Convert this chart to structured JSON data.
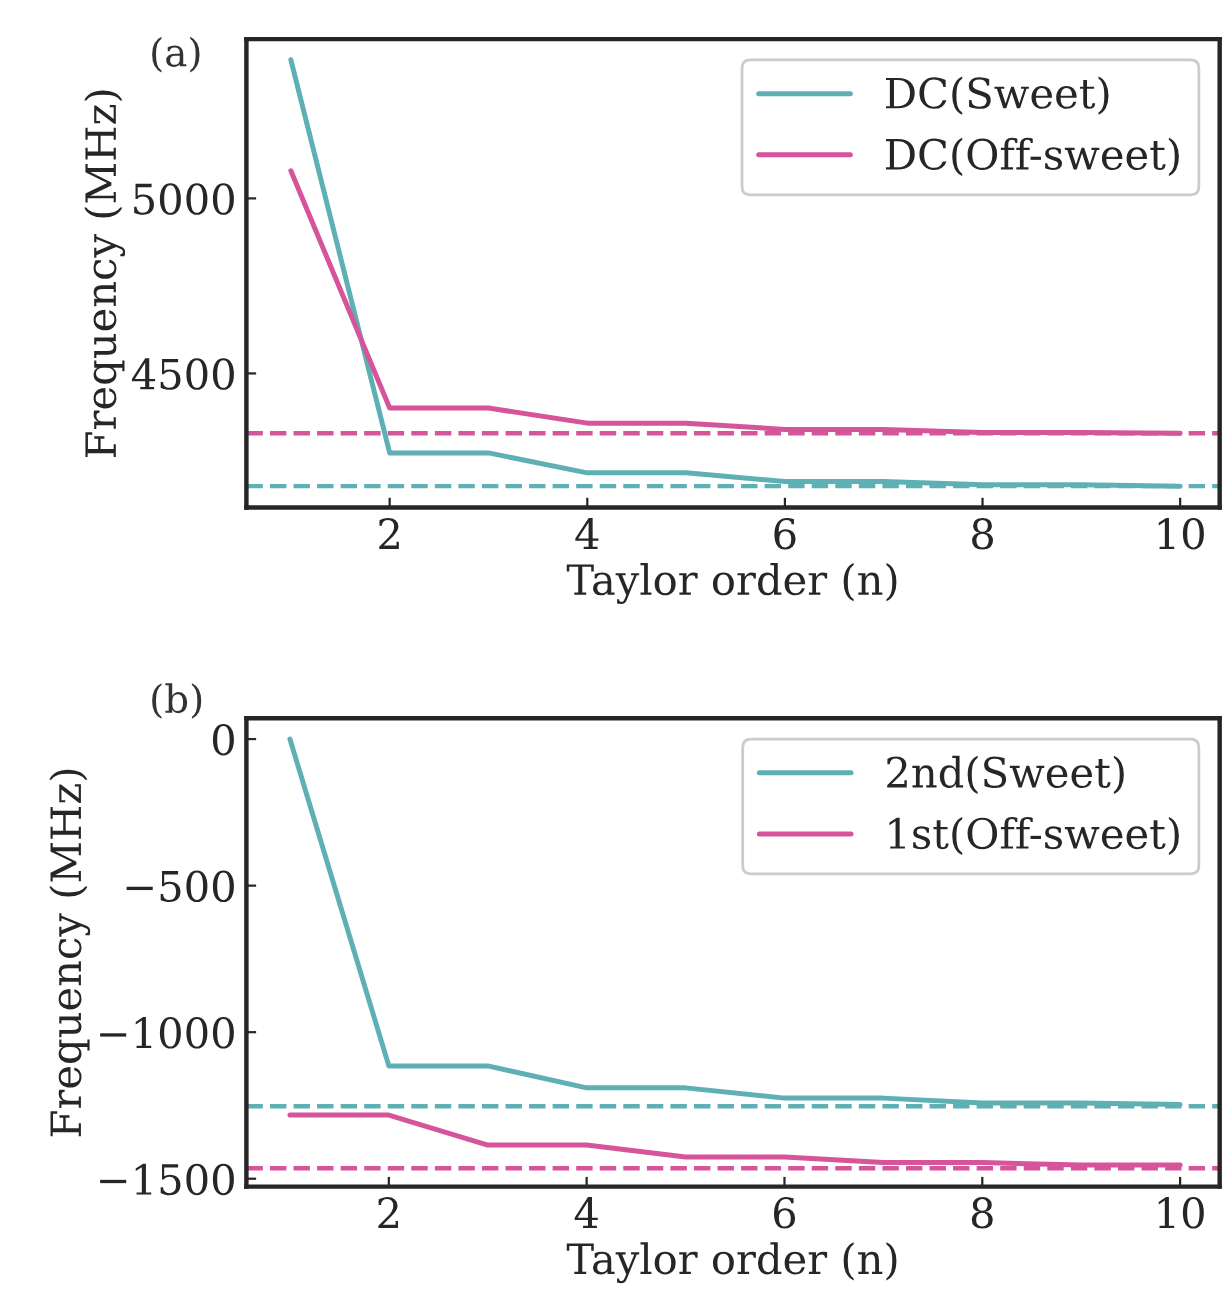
{
  "chart_data": [
    {
      "type": "line",
      "title": "(a)",
      "xlabel": "Taylor order (n)",
      "ylabel": "Frequency (MHz)",
      "x": [
        1,
        2,
        3,
        4,
        5,
        6,
        7,
        8,
        9,
        10
      ],
      "series": [
        {
          "name": "DC(Sweet)",
          "color": "#5fb0b4",
          "values": [
            5396,
            4273,
            4273,
            4216,
            4216,
            4191,
            4191,
            4182,
            4182,
            4178
          ]
        },
        {
          "name": "DC(Off-sweet)",
          "color": "#d6559a",
          "values": [
            5079,
            4401,
            4401,
            4358,
            4358,
            4340,
            4340,
            4331,
            4331,
            4329
          ]
        }
      ],
      "ref_lines": [
        {
          "axis": "y",
          "value": 4178,
          "color": "#5fb0b4",
          "line_style": "dashed"
        },
        {
          "axis": "y",
          "value": 4329,
          "color": "#d6559a",
          "line_style": "dashed"
        }
      ],
      "xlim": [
        0.55,
        10.4
      ],
      "xticks": [
        2,
        4,
        6,
        8,
        10
      ],
      "ylim": [
        4117,
        5455
      ],
      "yticks": [
        4500,
        5000
      ],
      "legend": "top right",
      "grid": false,
      "line_style": "solid",
      "marker": "none"
    },
    {
      "type": "line",
      "title": "(b)",
      "xlabel": "Taylor order (n)",
      "ylabel": "Frequency (MHz)",
      "x": [
        1,
        2,
        3,
        4,
        5,
        6,
        7,
        8,
        9,
        10
      ],
      "series": [
        {
          "name": "2nd(Sweet)",
          "color": "#5fb0b4",
          "values": [
            0,
            -1115,
            -1115,
            -1190,
            -1190,
            -1225,
            -1225,
            -1242,
            -1242,
            -1247
          ]
        },
        {
          "name": "1st(Off-sweet)",
          "color": "#d6559a",
          "values": [
            -1283,
            -1283,
            -1385,
            -1385,
            -1426,
            -1426,
            -1445,
            -1445,
            -1453,
            -1453
          ]
        }
      ],
      "ref_lines": [
        {
          "axis": "y",
          "value": -1253,
          "color": "#5fb0b4",
          "line_style": "dashed"
        },
        {
          "axis": "y",
          "value": -1464,
          "color": "#d6559a",
          "line_style": "dashed"
        }
      ],
      "xlim": [
        0.56,
        10.4
      ],
      "xticks": [
        2,
        4,
        6,
        8,
        10
      ],
      "ylim": [
        -1527,
        71
      ],
      "yticks": [
        0,
        {
          "value": -500,
          "label": "−500"
        },
        {
          "value": -1000,
          "label": "−1000"
        },
        {
          "value": -1500,
          "label": "−1500"
        }
      ],
      "legend": "top right",
      "grid": false,
      "line_style": "solid",
      "marker": "none"
    }
  ]
}
